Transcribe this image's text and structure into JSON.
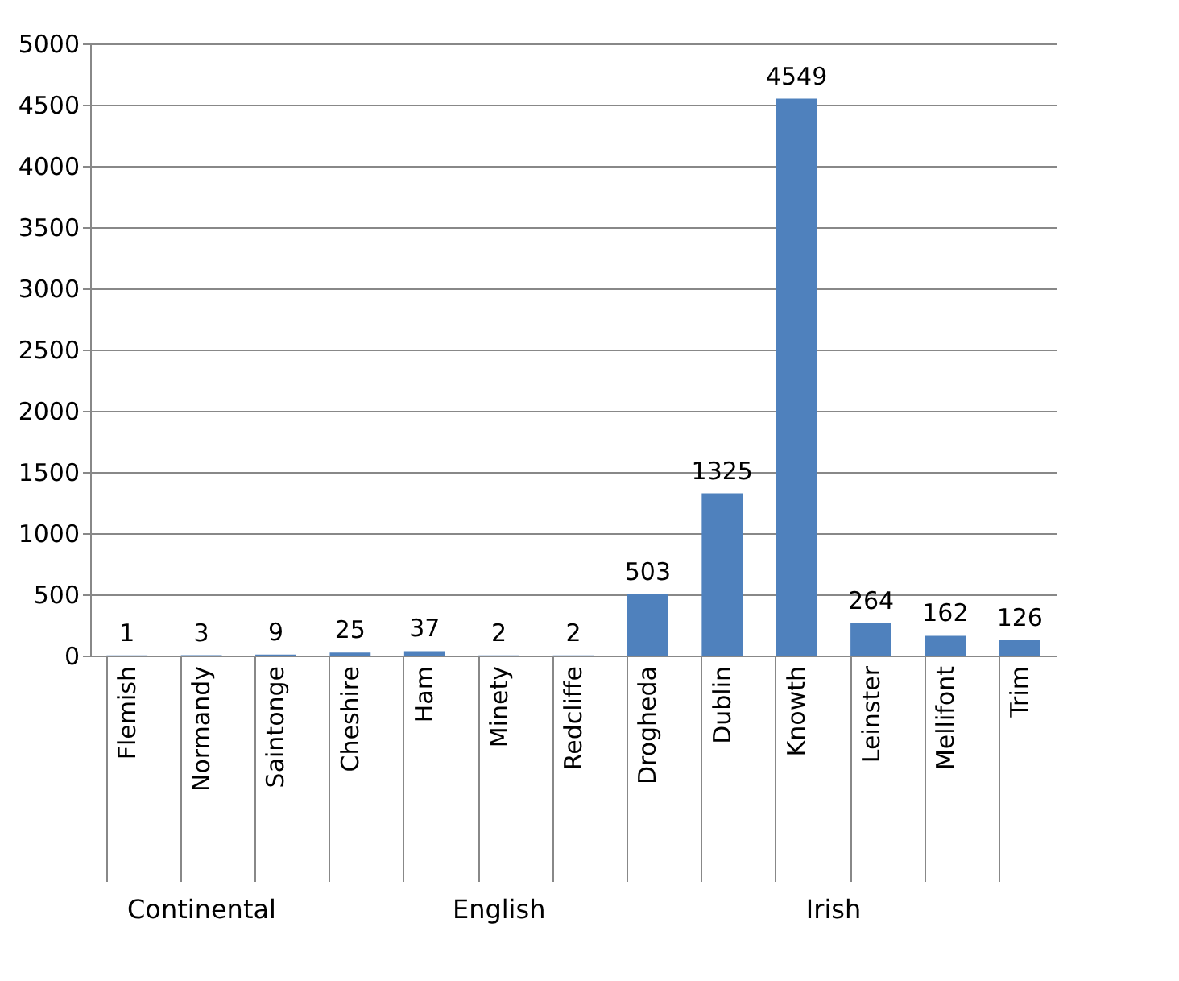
{
  "chart_data": {
    "type": "bar",
    "categories": [
      "Flemish",
      "Normandy",
      "Saintonge",
      "Cheshire",
      "Ham",
      "Minety",
      "Redcliffe",
      "Drogheda",
      "Dublin",
      "Knowth",
      "Leinster",
      "Mellifont",
      "Trim"
    ],
    "values": [
      1,
      3,
      9,
      25,
      37,
      2,
      2,
      503,
      1325,
      4549,
      264,
      162,
      126
    ],
    "color": "#4f81bd",
    "ylim": [
      0,
      5000
    ],
    "yticks": [
      0,
      500,
      1000,
      1500,
      2000,
      2500,
      3000,
      3500,
      4000,
      4500,
      5000
    ],
    "grid": "y",
    "data_labels": true,
    "annotations": [
      "Continental",
      "English",
      "Irish"
    ]
  }
}
